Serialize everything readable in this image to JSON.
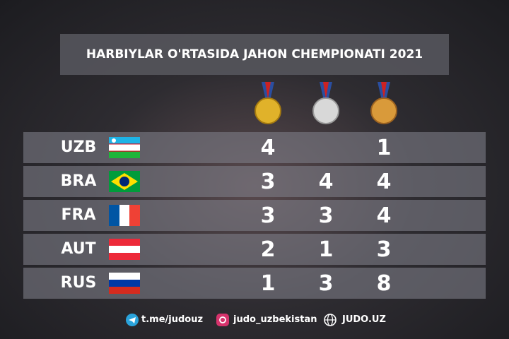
{
  "header": {
    "title": "HARBIYLAR O'RTASIDA JAHON CHEMPIONATI 2021"
  },
  "table": {
    "rows": [
      {
        "country": "UZB",
        "gold": 4,
        "silver": null,
        "bronze": 1
      },
      {
        "country": "BRA",
        "gold": 3,
        "silver": 4,
        "bronze": 4
      },
      {
        "country": "FRA",
        "gold": 3,
        "silver": 3,
        "bronze": 4
      },
      {
        "country": "AUT",
        "gold": 2,
        "silver": 1,
        "bronze": 3
      },
      {
        "country": "RUS",
        "gold": 1,
        "silver": 3,
        "bronze": 8
      }
    ]
  },
  "footer": {
    "telegram": "t.me/judouz",
    "instagram": "judo_uzbekistan",
    "website": "JUDO.UZ"
  }
}
